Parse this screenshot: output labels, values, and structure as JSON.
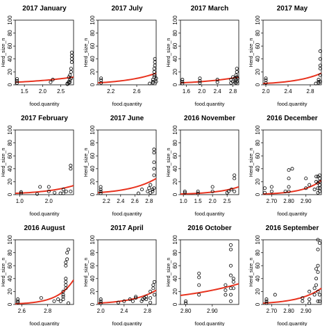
{
  "chart_data": [
    {
      "type": "scatter",
      "title": "2017 January",
      "xlabel": "food.quantity",
      "ylabel": "Herd_size_n",
      "xlim": [
        1.25,
        2.85
      ],
      "ylim": [
        0,
        100
      ],
      "xticks": [
        1.5,
        2.0,
        2.5
      ],
      "xtick_labels": [
        "1.5",
        "2.0",
        "2.5"
      ],
      "yticks": [
        0,
        20,
        40,
        60,
        80,
        100
      ],
      "fit": {
        "x0": 1.25,
        "y0": 4,
        "x1": 2.85,
        "y1": 12
      },
      "x": [
        1.3,
        1.3,
        1.3,
        2.22,
        2.28,
        2.68,
        2.68,
        2.72,
        2.72,
        2.72,
        2.75,
        2.75,
        2.75,
        2.78,
        2.78,
        2.78,
        2.8,
        2.8,
        2.8,
        2.8
      ],
      "y": [
        3,
        6,
        9,
        4,
        8,
        1,
        2,
        3,
        5,
        12,
        4,
        8,
        15,
        10,
        20,
        25,
        35,
        40,
        45,
        50
      ]
    },
    {
      "type": "scatter",
      "title": "2017 July",
      "xlabel": "food.quantity",
      "ylabel": "Herd_size_n",
      "xlim": [
        2.0,
        2.9
      ],
      "ylim": [
        0,
        100
      ],
      "xticks": [
        2.2,
        2.6
      ],
      "xtick_labels": [
        "2.2",
        "2.6"
      ],
      "yticks": [
        0,
        20,
        40,
        60,
        80,
        100
      ],
      "fit": {
        "x0": 2.0,
        "y0": 3,
        "x1": 2.9,
        "y1": 18
      },
      "x": [
        2.05,
        2.05,
        2.05,
        2.8,
        2.85,
        2.85,
        2.85,
        2.87,
        2.87,
        2.87,
        2.87,
        2.88,
        2.88,
        2.88,
        2.9,
        2.9
      ],
      "y": [
        3,
        7,
        10,
        2,
        3,
        5,
        8,
        12,
        15,
        20,
        25,
        30,
        35,
        40,
        5,
        10
      ]
    },
    {
      "type": "scatter",
      "title": "2017 March",
      "xlabel": "food.quantity",
      "ylabel": "Herd_size_n",
      "xlim": [
        1.45,
        2.95
      ],
      "ylim": [
        0,
        100
      ],
      "xticks": [
        1.6,
        2.0,
        2.4,
        2.8
      ],
      "xtick_labels": [
        "1.6",
        "2.0",
        "2.4",
        "2.8"
      ],
      "yticks": [
        0,
        20,
        40,
        60,
        80,
        100
      ],
      "fit": {
        "x0": 1.45,
        "y0": 3,
        "x1": 2.95,
        "y1": 12
      },
      "x": [
        1.5,
        1.5,
        1.5,
        1.95,
        1.95,
        1.95,
        2.4,
        2.4,
        2.75,
        2.75,
        2.8,
        2.8,
        2.85,
        2.85,
        2.88,
        2.88,
        2.88,
        2.9,
        2.9,
        2.9,
        2.9,
        2.92
      ],
      "y": [
        2,
        5,
        8,
        3,
        6,
        10,
        4,
        8,
        3,
        8,
        5,
        12,
        4,
        10,
        3,
        8,
        15,
        5,
        12,
        20,
        25,
        10
      ]
    },
    {
      "type": "scatter",
      "title": "2017 May",
      "xlabel": "food.quantity",
      "ylabel": "Herd_size_n",
      "xlim": [
        1.95,
        3.0
      ],
      "ylim": [
        0,
        100
      ],
      "xticks": [
        2.0,
        2.4,
        2.8
      ],
      "xtick_labels": [
        "2.0",
        "2.4",
        "2.8"
      ],
      "yticks": [
        0,
        20,
        40,
        60,
        80,
        100
      ],
      "fit": {
        "x0": 1.95,
        "y0": 2,
        "x1": 3.0,
        "y1": 18
      },
      "x": [
        2.0,
        2.0,
        2.0,
        2.9,
        2.95,
        2.95,
        2.95,
        2.98,
        2.98,
        2.98,
        2.98,
        2.98,
        2.98
      ],
      "y": [
        3,
        7,
        10,
        2,
        3,
        5,
        8,
        5,
        15,
        25,
        30,
        40,
        52
      ]
    },
    {
      "type": "scatter",
      "title": "2017 February",
      "xlabel": "food.quantity",
      "ylabel": "Herd_size_n",
      "xlim": [
        0.85,
        2.85
      ],
      "ylim": [
        0,
        100
      ],
      "xticks": [
        1.0,
        2.0
      ],
      "xtick_labels": [
        "1.0",
        "2.0"
      ],
      "yticks": [
        0,
        20,
        40,
        60,
        80,
        100
      ],
      "fit": {
        "x0": 0.85,
        "y0": 2,
        "x1": 2.85,
        "y1": 14
      },
      "x": [
        1.05,
        1.05,
        1.6,
        1.7,
        2.0,
        2.0,
        2.2,
        2.4,
        2.5,
        2.5,
        2.6,
        2.75,
        2.75,
        2.75
      ],
      "y": [
        2,
        4,
        1,
        12,
        5,
        12,
        3,
        2,
        2,
        8,
        5,
        40,
        45,
        5
      ]
    },
    {
      "type": "scatter",
      "title": "2017 June",
      "xlabel": "food.quantity",
      "ylabel": "Herd_size_n",
      "xlim": [
        2.08,
        2.9
      ],
      "ylim": [
        0,
        100
      ],
      "xticks": [
        2.2,
        2.4,
        2.6,
        2.8
      ],
      "xtick_labels": [
        "2.2",
        "2.4",
        "2.6",
        "2.8"
      ],
      "yticks": [
        0,
        20,
        40,
        60,
        80,
        100
      ],
      "fit": {
        "x0": 2.08,
        "y0": 3,
        "x1": 2.9,
        "y1": 25
      },
      "x": [
        2.12,
        2.12,
        2.12,
        2.12,
        2.65,
        2.7,
        2.78,
        2.8,
        2.82,
        2.82,
        2.85,
        2.85,
        2.87,
        2.87,
        2.87,
        2.87,
        2.87,
        2.87
      ],
      "y": [
        2,
        5,
        8,
        12,
        2,
        8,
        5,
        10,
        3,
        15,
        5,
        8,
        10,
        30,
        40,
        50,
        65,
        70
      ]
    },
    {
      "type": "scatter",
      "title": "2016 November",
      "xlabel": "food.quantity",
      "ylabel": "Herd_size_n",
      "xlim": [
        0.9,
        2.9
      ],
      "ylim": [
        0,
        100
      ],
      "xticks": [
        1.0,
        1.5,
        2.0,
        2.5
      ],
      "xtick_labels": [
        "1.0",
        "1.5",
        "2.0",
        "2.5"
      ],
      "yticks": [
        0,
        20,
        40,
        60,
        80,
        100
      ],
      "fit": {
        "x0": 0.9,
        "y0": 1,
        "x1": 2.9,
        "y1": 12
      },
      "x": [
        1.05,
        1.05,
        1.5,
        1.5,
        2.0,
        2.0,
        2.5,
        2.55,
        2.65,
        2.75,
        2.75,
        2.75
      ],
      "y": [
        3,
        5,
        2,
        5,
        5,
        12,
        3,
        5,
        8,
        5,
        25,
        30
      ]
    },
    {
      "type": "scatter",
      "title": "2016 December",
      "xlabel": "food.quantity",
      "ylabel": "Herd_size_n",
      "xlim": [
        2.65,
        2.99
      ],
      "ylim": [
        0,
        100
      ],
      "xticks": [
        2.7,
        2.8,
        2.9
      ],
      "xtick_labels": [
        "2.70",
        "2.80",
        "2.90"
      ],
      "yticks": [
        0,
        20,
        40,
        60,
        80,
        100
      ],
      "fit": {
        "x0": 2.65,
        "y0": 1,
        "x1": 2.99,
        "y1": 22
      },
      "x": [
        2.66,
        2.66,
        2.7,
        2.7,
        2.78,
        2.8,
        2.8,
        2.8,
        2.8,
        2.82,
        2.9,
        2.9,
        2.92,
        2.95,
        2.96,
        2.96,
        2.97,
        2.97,
        2.97,
        2.97,
        2.98,
        2.98,
        2.98,
        2.98,
        2.98,
        2.98
      ],
      "y": [
        3,
        10,
        5,
        12,
        5,
        5,
        12,
        25,
        38,
        40,
        10,
        25,
        15,
        8,
        20,
        28,
        3,
        10,
        18,
        28,
        5,
        10,
        15,
        20,
        25,
        30
      ]
    },
    {
      "type": "scatter",
      "title": "2016 August",
      "xlabel": "food.quantity",
      "ylabel": "Herd_size_n",
      "xlim": [
        2.55,
        3.0
      ],
      "ylim": [
        0,
        100
      ],
      "xticks": [
        2.6,
        2.8
      ],
      "xtick_labels": [
        "2.6",
        "2.8"
      ],
      "yticks": [
        0,
        20,
        40,
        60,
        80,
        100
      ],
      "fit": {
        "x0": 2.55,
        "y0": 1,
        "x1": 3.0,
        "y1": 38
      },
      "x": [
        2.57,
        2.57,
        2.57,
        2.75,
        2.85,
        2.88,
        2.9,
        2.92,
        2.92,
        2.92,
        2.92,
        2.94,
        2.94,
        2.94,
        2.94,
        2.94,
        2.94,
        2.95,
        2.95,
        2.96,
        2.96
      ],
      "y": [
        3,
        5,
        8,
        10,
        5,
        8,
        5,
        8,
        12,
        15,
        20,
        25,
        30,
        35,
        40,
        60,
        65,
        70,
        80,
        85,
        2
      ]
    },
    {
      "type": "scatter",
      "title": "2017 April",
      "xlabel": "food.quantity",
      "ylabel": "Herd_size_n",
      "xlim": [
        1.95,
        2.95
      ],
      "ylim": [
        0,
        100
      ],
      "xticks": [
        2.0,
        2.4,
        2.8
      ],
      "xtick_labels": [
        "2.0",
        "2.4",
        "2.8"
      ],
      "yticks": [
        0,
        20,
        40,
        60,
        80,
        100
      ],
      "fit": {
        "x0": 1.95,
        "y0": 2,
        "x1": 2.95,
        "y1": 22
      },
      "x": [
        2.0,
        2.0,
        2.0,
        2.3,
        2.4,
        2.5,
        2.55,
        2.6,
        2.6,
        2.7,
        2.72,
        2.75,
        2.78,
        2.78,
        2.85,
        2.85,
        2.85,
        2.9,
        2.9,
        2.92,
        2.92
      ],
      "y": [
        2,
        5,
        8,
        3,
        5,
        8,
        5,
        10,
        12,
        5,
        8,
        10,
        8,
        12,
        3,
        10,
        20,
        25,
        30,
        35,
        15
      ]
    },
    {
      "type": "scatter",
      "title": "2016 October",
      "xlabel": "food.quantity",
      "ylabel": "Herd_size_n",
      "xlim": [
        2.78,
        3.0
      ],
      "ylim": [
        0,
        100
      ],
      "xticks": [
        2.8,
        2.9
      ],
      "xtick_labels": [
        "2.80",
        "2.90"
      ],
      "yticks": [
        0,
        20,
        40,
        60,
        80,
        100
      ],
      "fit": {
        "x0": 2.78,
        "y0": 14,
        "x1": 3.0,
        "y1": 32
      },
      "x": [
        2.8,
        2.8,
        2.85,
        2.85,
        2.85,
        2.85,
        2.95,
        2.95,
        2.95,
        2.97,
        2.97,
        2.97,
        2.97,
        2.97,
        2.97,
        2.97,
        2.98,
        2.98,
        2.98
      ],
      "y": [
        2,
        5,
        15,
        30,
        42,
        48,
        15,
        22,
        30,
        5,
        15,
        25,
        45,
        60,
        85,
        92,
        25,
        35,
        40
      ]
    },
    {
      "type": "scatter",
      "title": "2016 September",
      "xlabel": "food.quantity",
      "ylabel": "Herd_size_n",
      "xlim": [
        2.65,
        2.99
      ],
      "ylim": [
        0,
        100
      ],
      "xticks": [
        2.7,
        2.8,
        2.9
      ],
      "xtick_labels": [
        "2.70",
        "2.80",
        "2.90"
      ],
      "yticks": [
        0,
        20,
        40,
        60,
        80,
        100
      ],
      "fit": {
        "x0": 2.65,
        "y0": 2,
        "x1": 2.99,
        "y1": 25
      },
      "x": [
        2.67,
        2.67,
        2.67,
        2.72,
        2.88,
        2.88,
        2.92,
        2.92,
        2.92,
        2.95,
        2.95,
        2.96,
        2.96,
        2.96,
        2.97,
        2.97,
        2.97,
        2.97,
        2.97,
        2.97,
        2.98,
        2.98,
        2.98
      ],
      "y": [
        2,
        5,
        8,
        15,
        5,
        10,
        2,
        8,
        20,
        15,
        25,
        30,
        40,
        55,
        5,
        20,
        50,
        60,
        85,
        100,
        5,
        15,
        95
      ]
    }
  ],
  "colors": {
    "fit_line": "#e8321e",
    "points": "#000000",
    "frame": "#000000"
  }
}
